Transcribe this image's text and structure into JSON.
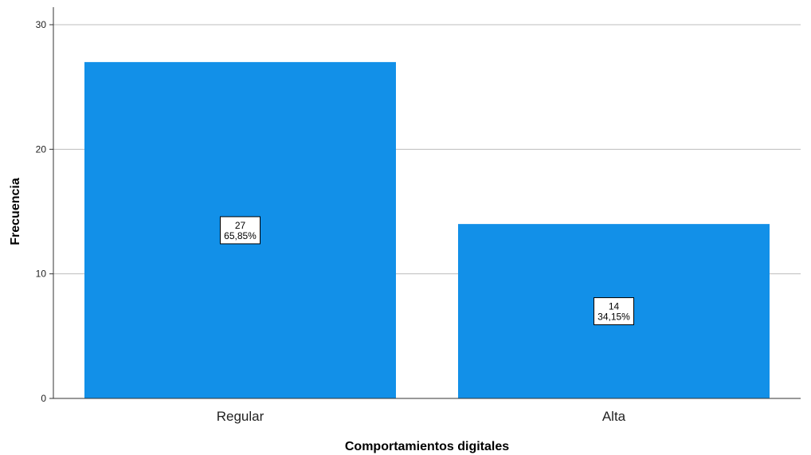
{
  "chart_data": {
    "type": "bar",
    "categories": [
      "Regular",
      "Alta"
    ],
    "values": [
      27,
      14
    ],
    "data_labels": [
      {
        "count": "27",
        "percent": "65,85%"
      },
      {
        "count": "14",
        "percent": "34,15%"
      }
    ],
    "xlabel": "Comportamientos digitales",
    "ylabel": "Frecuencia",
    "ylim": [
      0,
      30
    ],
    "yticks": [
      0,
      10,
      20,
      30
    ],
    "ytick_labels": [
      "0",
      "10",
      "20",
      "30"
    ],
    "grid": true,
    "bar_color": "#1290E8",
    "grid_color": "#BDBDBD",
    "axis_color": "#333333"
  }
}
